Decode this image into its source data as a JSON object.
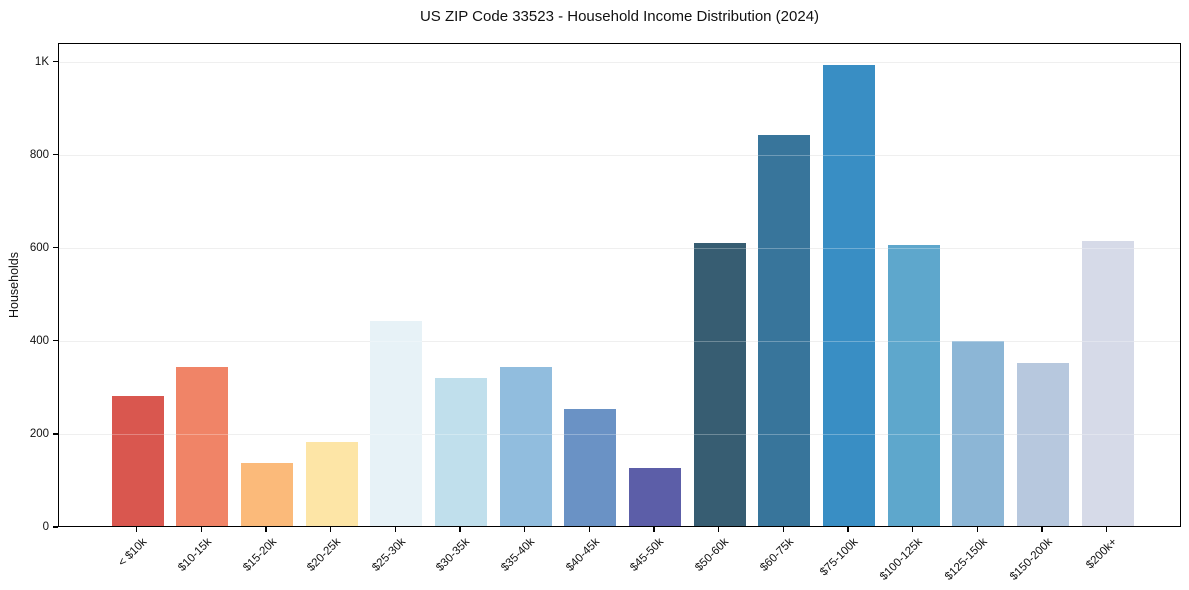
{
  "figure": {
    "title": "US ZIP Code 33523 - Household Income Distribution (2024)",
    "ylabel": "Households"
  },
  "chart_data": {
    "type": "bar",
    "title": "US ZIP Code 33523 - Household Income Distribution (2024)",
    "xlabel": "",
    "ylabel": "Households",
    "categories": [
      "< $10k",
      "$10-15k",
      "$15-20k",
      "$20-25k",
      "$25-30k",
      "$30-35k",
      "$35-40k",
      "$40-45k",
      "$45-50k",
      "$50-60k",
      "$60-75k",
      "$75-100k",
      "$100-125k",
      "$125-150k",
      "$150-200k",
      "$200k+"
    ],
    "values": [
      280,
      342,
      135,
      180,
      440,
      317,
      342,
      252,
      125,
      608,
      840,
      990,
      604,
      397,
      350,
      612
    ],
    "bar_colors": [
      "#d9574f",
      "#f08467",
      "#fbba7a",
      "#fde5a6",
      "#e7f2f7",
      "#c0dfec",
      "#91bdde",
      "#6a92c5",
      "#5c5ea8",
      "#375d72",
      "#38759b",
      "#398ec4",
      "#5ea7cc",
      "#8cb6d6",
      "#b7c8de",
      "#d6dae8"
    ],
    "yticks": [
      {
        "value": 0,
        "label": "0"
      },
      {
        "value": 200,
        "label": "200"
      },
      {
        "value": 400,
        "label": "400"
      },
      {
        "value": 600,
        "label": "600"
      },
      {
        "value": 800,
        "label": "800"
      },
      {
        "value": 1000,
        "label": "1K"
      }
    ],
    "ylim": [
      0,
      1040
    ],
    "grid": "horizontal",
    "gridline_color": "#e9e9e9",
    "axis_color": "#000000",
    "background": "#ffffff",
    "legend": "none",
    "x_label_rotation_deg": 45
  }
}
